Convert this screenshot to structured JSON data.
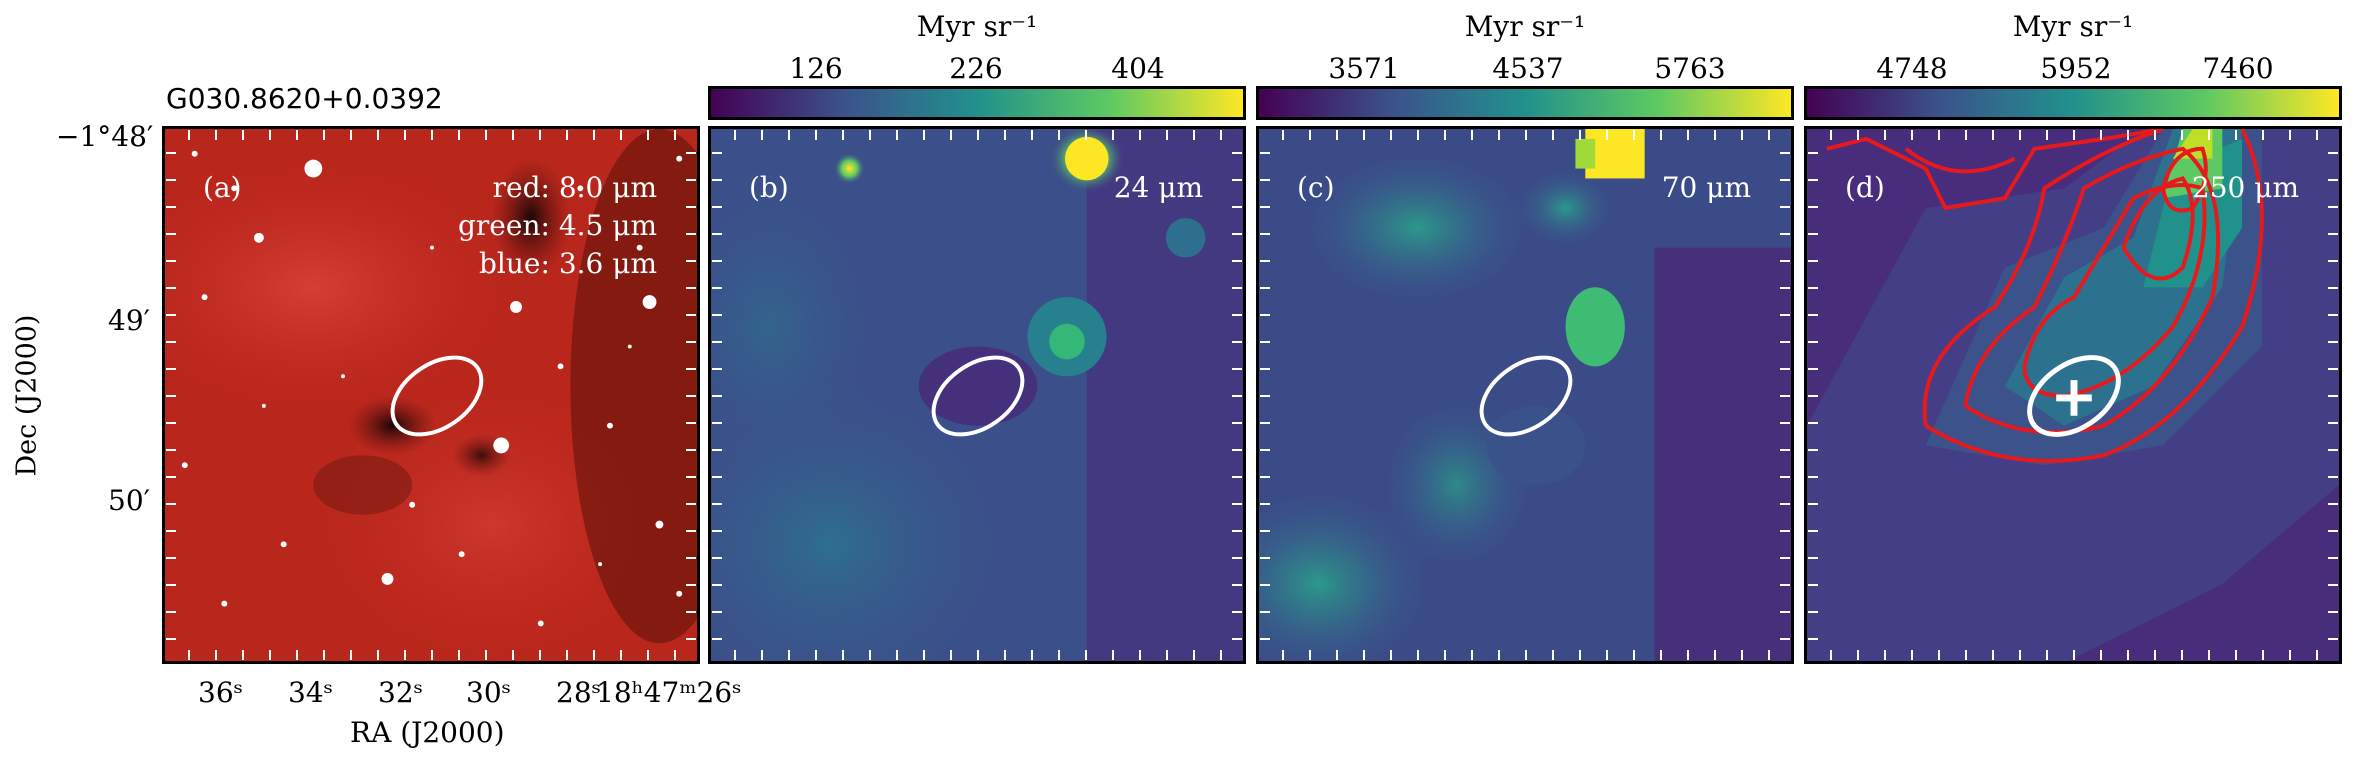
{
  "object_name": "G030.8620+0.0392",
  "axes": {
    "ylabel": "Dec (J2000)",
    "xlabel": "RA (J2000)",
    "dec_ticks": [
      "−1°48′",
      "49′",
      "50′"
    ],
    "ra_ticks": [
      "36ˢ",
      "34ˢ",
      "32ˢ",
      "30ˢ",
      "28ˢ",
      "18ʰ47ᵐ26ˢ"
    ]
  },
  "panels": [
    {
      "id": "a",
      "label": "(a)",
      "legend": [
        "red: 8.0 μm",
        "green: 4.5 μm",
        "blue: 3.6 μm"
      ],
      "colors": {
        "base": "#c8281e",
        "dark": "#2a0a08"
      }
    },
    {
      "id": "b",
      "label": "(b)",
      "wavelength": "24 μm",
      "colorbar": {
        "title": "Myr sr⁻¹",
        "ticks": [
          "126",
          "226",
          "404"
        ]
      }
    },
    {
      "id": "c",
      "label": "(c)",
      "wavelength": "70 μm",
      "colorbar": {
        "title": "Myr sr⁻¹",
        "ticks": [
          "3571",
          "4537",
          "5763"
        ]
      }
    },
    {
      "id": "d",
      "label": "(d)",
      "wavelength": "250 μm",
      "colorbar": {
        "title": "Myr sr⁻¹",
        "ticks": [
          "4748",
          "5952",
          "7460"
        ]
      },
      "contour_color": "#e8191c",
      "marker": "cross"
    }
  ],
  "colormap": [
    "#440154",
    "#3b528b",
    "#21918c",
    "#5ec962",
    "#fde725"
  ]
}
